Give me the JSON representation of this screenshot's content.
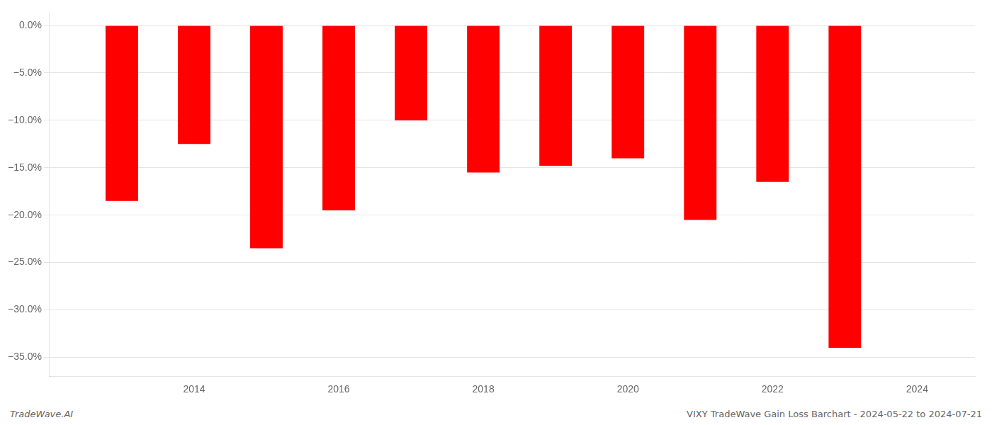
{
  "chart_data": {
    "type": "bar",
    "x": [
      2013,
      2014,
      2015,
      2016,
      2017,
      2018,
      2019,
      2020,
      2021,
      2022,
      2023
    ],
    "values": [
      -18.5,
      -12.5,
      -23.5,
      -19.5,
      -10.0,
      -15.5,
      -14.8,
      -14.0,
      -20.5,
      -16.5,
      -34.0
    ],
    "color": "#ff0000",
    "xlim": [
      2012.0,
      2024.8
    ],
    "xticks": [
      2014,
      2016,
      2018,
      2020,
      2022,
      2024
    ],
    "ylim": [
      -37,
      1.5
    ],
    "yticks": [
      {
        "value": 0.0,
        "label": "0.0%"
      },
      {
        "value": -5.0,
        "label": "−5.0%"
      },
      {
        "value": -10.0,
        "label": "−10.0%"
      },
      {
        "value": -15.0,
        "label": "−15.0%"
      },
      {
        "value": -20.0,
        "label": "−20.0%"
      },
      {
        "value": -25.0,
        "label": "−25.0%"
      },
      {
        "value": -30.0,
        "label": "−30.0%"
      },
      {
        "value": -35.0,
        "label": "−35.0%"
      }
    ],
    "grid": "y",
    "annotations": [
      "TradeWave.AI",
      "VIXY TradeWave Gain Loss Barchart - 2024-05-22 to 2024-07-21"
    ]
  }
}
